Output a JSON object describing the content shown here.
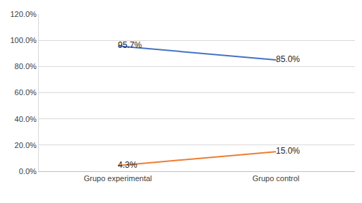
{
  "chart_data": {
    "type": "line",
    "categories": [
      "Grupo experimental",
      "Grupo control"
    ],
    "series": [
      {
        "color": "#4472c4",
        "values": [
          95.7,
          85.0
        ],
        "value_labels": [
          "95.7%",
          "85.0%"
        ]
      },
      {
        "color": "#ed7d31",
        "values": [
          4.3,
          15.0
        ],
        "value_labels": [
          "4.3%",
          "15.0%"
        ]
      }
    ],
    "ylim": [
      0,
      120
    ],
    "yticks": [
      {
        "value": 0,
        "label": "0.0%"
      },
      {
        "value": 20,
        "label": "20.0%"
      },
      {
        "value": 40,
        "label": "40.0%"
      },
      {
        "value": 60,
        "label": "60.0%"
      },
      {
        "value": 80,
        "label": "80.0%"
      },
      {
        "value": 100,
        "label": "100.0%"
      },
      {
        "value": 120,
        "label": "120.0%"
      }
    ],
    "grid": true,
    "data_labels": true
  }
}
